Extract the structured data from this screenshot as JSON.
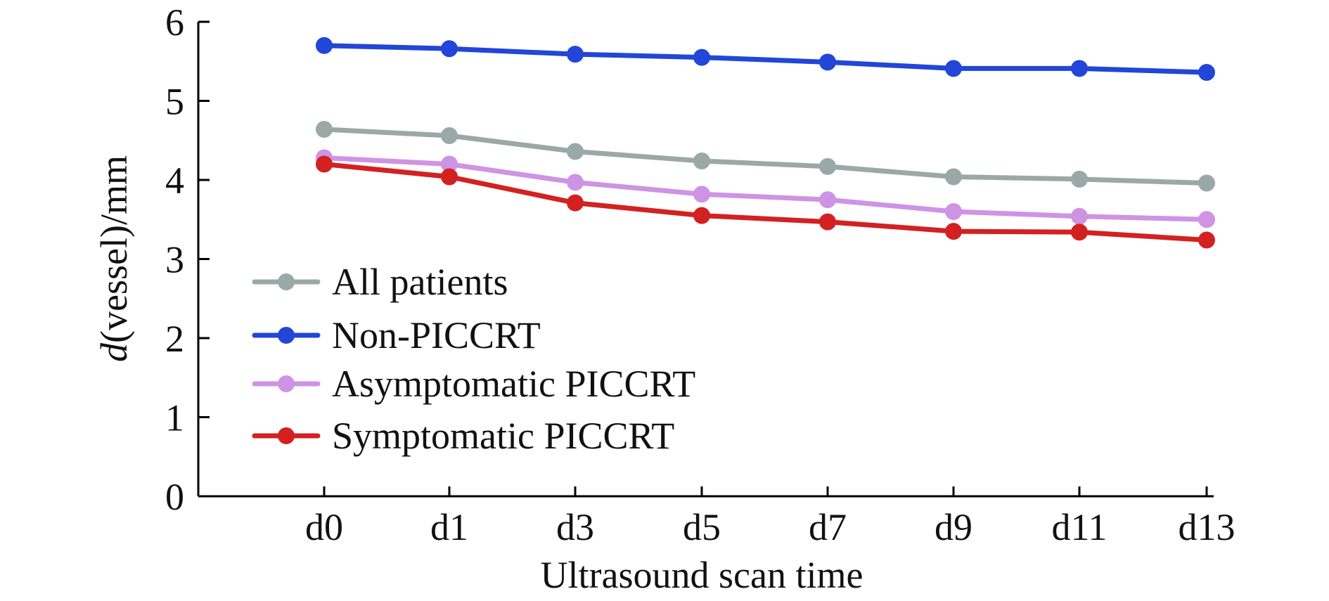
{
  "chart_data": {
    "type": "line",
    "title": "",
    "xlabel": "Ultrasound scan time",
    "ylabel": {
      "italic": "d",
      "rest": "(vessel)/mm"
    },
    "categories": [
      "d0",
      "d1",
      "d3",
      "d5",
      "d7",
      "d9",
      "d11",
      "d13"
    ],
    "ylim": [
      0,
      6
    ],
    "yticks": [
      "0",
      "1",
      "2",
      "3",
      "4",
      "5",
      "6"
    ],
    "grid": false,
    "legend_position": "bottom-left",
    "series": [
      {
        "name": "All patients",
        "color": "#9aa9a6",
        "values": [
          4.64,
          4.56,
          4.36,
          4.24,
          4.17,
          4.04,
          4.01,
          3.96
        ]
      },
      {
        "name": "Non-PICCRT",
        "color": "#2146d8",
        "values": [
          5.7,
          5.66,
          5.59,
          5.55,
          5.49,
          5.41,
          5.41,
          5.36
        ]
      },
      {
        "name": "Asymptomatic PICCRT",
        "color": "#cf93e4",
        "values": [
          4.28,
          4.2,
          3.97,
          3.82,
          3.75,
          3.6,
          3.54,
          3.5
        ]
      },
      {
        "name": "Symptomatic PICCRT",
        "color": "#d32121",
        "values": [
          4.2,
          4.04,
          3.71,
          3.55,
          3.47,
          3.35,
          3.34,
          3.24
        ]
      }
    ]
  }
}
